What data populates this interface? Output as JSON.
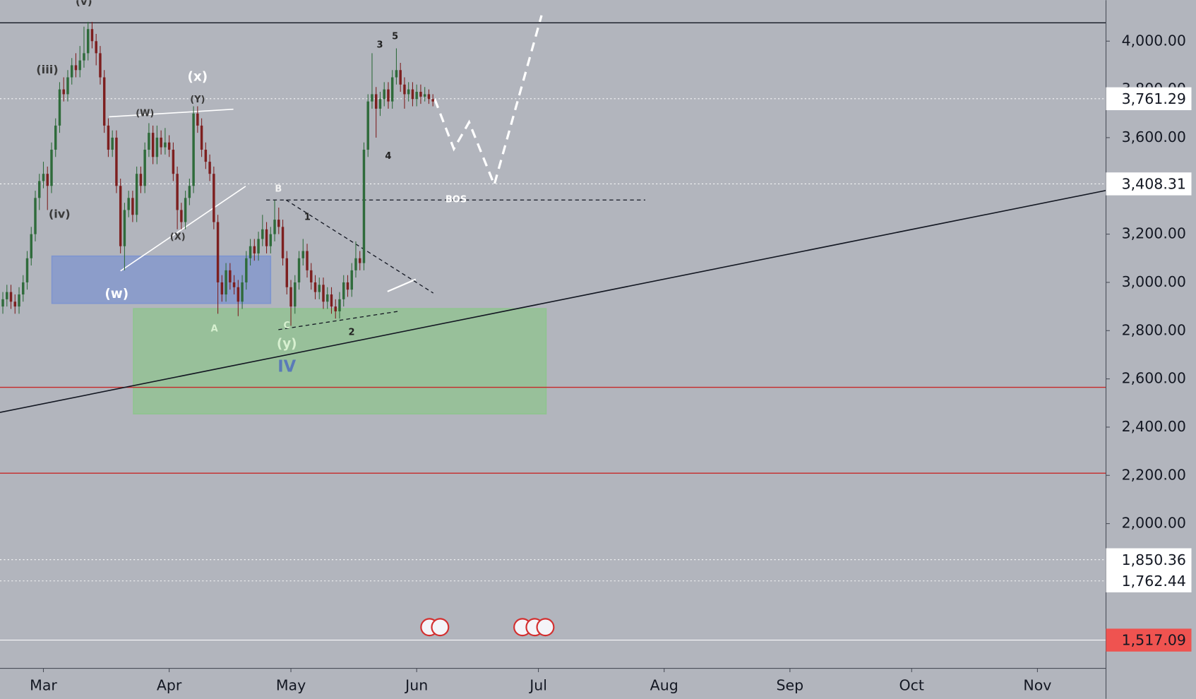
{
  "chart_data": {
    "type": "candlestick",
    "xlim": [
      -10.7,
      261.9
    ],
    "ylim": [
      1400,
      4170
    ],
    "xticks": [
      {
        "value": 0,
        "label": "Mar"
      },
      {
        "value": 31,
        "label": "Apr"
      },
      {
        "value": 61,
        "label": "May"
      },
      {
        "value": 92,
        "label": "Jun"
      },
      {
        "value": 122,
        "label": "Jul"
      },
      {
        "value": 153,
        "label": "Aug"
      },
      {
        "value": 184,
        "label": "Sep"
      },
      {
        "value": 214,
        "label": "Oct"
      },
      {
        "value": 245,
        "label": "Nov"
      }
    ],
    "yticks": [
      {
        "value": 2000,
        "label": "2,000.00"
      },
      {
        "value": 2200,
        "label": "2,200.00"
      },
      {
        "value": 2400,
        "label": "2,400.00"
      },
      {
        "value": 2600,
        "label": "2,600.00"
      },
      {
        "value": 2800,
        "label": "2,800.00"
      },
      {
        "value": 3000,
        "label": "3,000.00"
      },
      {
        "value": 3200,
        "label": "3,200.00"
      },
      {
        "value": 3400,
        "label": "3,400.00"
      },
      {
        "value": 3600,
        "label": "3,600.00"
      },
      {
        "value": 3800,
        "label": "3,800.00"
      },
      {
        "value": 4000,
        "label": "4,000.00"
      }
    ],
    "up_color": "#2f6b3b",
    "down_color": "#7d1f1f",
    "candles": {
      "x": [
        -10,
        -9,
        -8,
        -7,
        -6,
        -5,
        -4,
        -3,
        -2,
        -1,
        0,
        1,
        2,
        3,
        4,
        5,
        6,
        7,
        8,
        9,
        10,
        11,
        12,
        13,
        14,
        15,
        16,
        17,
        18,
        19,
        20,
        21,
        22,
        23,
        24,
        25,
        26,
        27,
        28,
        29,
        30,
        31,
        32,
        33,
        34,
        35,
        36,
        37,
        38,
        39,
        40,
        41,
        42,
        43,
        44,
        45,
        46,
        47,
        48,
        49,
        50,
        51,
        52,
        53,
        54,
        55,
        56,
        57,
        58,
        59,
        60,
        61,
        62,
        63,
        64,
        65,
        66,
        67,
        68,
        69,
        70,
        71,
        72,
        73,
        74,
        75,
        76,
        77,
        78,
        79,
        80,
        81,
        82,
        83,
        84,
        85,
        86,
        87,
        88,
        89,
        90,
        91,
        92,
        93,
        94,
        95,
        96
      ],
      "ohlc": [
        [
          2900,
          2960,
          2870,
          2930
        ],
        [
          2930,
          2990,
          2900,
          2960
        ],
        [
          2960,
          2990,
          2890,
          2920
        ],
        [
          2920,
          2950,
          2870,
          2900
        ],
        [
          2900,
          2980,
          2870,
          2950
        ],
        [
          2950,
          3030,
          2920,
          3000
        ],
        [
          3000,
          3130,
          2970,
          3100
        ],
        [
          3100,
          3230,
          3070,
          3200
        ],
        [
          3200,
          3380,
          3170,
          3350
        ],
        [
          3350,
          3450,
          3300,
          3420
        ],
        [
          3420,
          3500,
          3390,
          3450
        ],
        [
          3450,
          3480,
          3300,
          3400
        ],
        [
          3400,
          3580,
          3370,
          3550
        ],
        [
          3550,
          3680,
          3520,
          3650
        ],
        [
          3650,
          3830,
          3620,
          3800
        ],
        [
          3800,
          3850,
          3750,
          3780
        ],
        [
          3780,
          3880,
          3750,
          3850
        ],
        [
          3850,
          3930,
          3820,
          3900
        ],
        [
          3900,
          3950,
          3850,
          3880
        ],
        [
          3880,
          3980,
          3850,
          3920
        ],
        [
          3920,
          4060,
          3890,
          3950
        ],
        [
          3950,
          4080,
          3920,
          4050
        ],
        [
          4050,
          4080,
          3970,
          4000
        ],
        [
          4000,
          4030,
          3900,
          3950
        ],
        [
          3950,
          3980,
          3820,
          3850
        ],
        [
          3850,
          3880,
          3620,
          3650
        ],
        [
          3650,
          3680,
          3520,
          3550
        ],
        [
          3550,
          3630,
          3520,
          3600
        ],
        [
          3600,
          3630,
          3370,
          3400
        ],
        [
          3400,
          3430,
          3120,
          3150
        ],
        [
          3150,
          3330,
          3050,
          3300
        ],
        [
          3300,
          3380,
          3270,
          3350
        ],
        [
          3350,
          3380,
          3250,
          3280
        ],
        [
          3280,
          3480,
          3250,
          3450
        ],
        [
          3450,
          3480,
          3370,
          3400
        ],
        [
          3400,
          3580,
          3370,
          3550
        ],
        [
          3550,
          3660,
          3520,
          3620
        ],
        [
          3620,
          3650,
          3490,
          3520
        ],
        [
          3520,
          3650,
          3490,
          3600
        ],
        [
          3600,
          3630,
          3530,
          3560
        ],
        [
          3560,
          3640,
          3530,
          3580
        ],
        [
          3580,
          3610,
          3520,
          3550
        ],
        [
          3550,
          3580,
          3420,
          3450
        ],
        [
          3450,
          3480,
          3220,
          3300
        ],
        [
          3300,
          3330,
          3220,
          3250
        ],
        [
          3250,
          3380,
          3220,
          3350
        ],
        [
          3350,
          3430,
          3320,
          3400
        ],
        [
          3400,
          3730,
          3370,
          3700
        ],
        [
          3700,
          3730,
          3620,
          3650
        ],
        [
          3650,
          3680,
          3520,
          3550
        ],
        [
          3550,
          3580,
          3470,
          3500
        ],
        [
          3500,
          3530,
          3420,
          3450
        ],
        [
          3450,
          3480,
          3220,
          3250
        ],
        [
          3250,
          3280,
          2870,
          3000
        ],
        [
          3000,
          3030,
          2920,
          2950
        ],
        [
          2950,
          3080,
          2920,
          3050
        ],
        [
          3050,
          3080,
          2970,
          3000
        ],
        [
          3000,
          3030,
          2950,
          2980
        ],
        [
          2980,
          3010,
          2860,
          2920
        ],
        [
          2920,
          3030,
          2890,
          3000
        ],
        [
          3000,
          3130,
          2970,
          3100
        ],
        [
          3100,
          3180,
          3070,
          3150
        ],
        [
          3150,
          3180,
          3090,
          3120
        ],
        [
          3120,
          3210,
          3090,
          3180
        ],
        [
          3180,
          3280,
          3150,
          3220
        ],
        [
          3220,
          3250,
          3120,
          3150
        ],
        [
          3150,
          3230,
          3120,
          3200
        ],
        [
          3200,
          3340,
          3170,
          3260
        ],
        [
          3260,
          3310,
          3200,
          3230
        ],
        [
          3230,
          3260,
          3070,
          3100
        ],
        [
          3100,
          3130,
          2950,
          2980
        ],
        [
          2980,
          3010,
          2820,
          2900
        ],
        [
          2900,
          3030,
          2870,
          3000
        ],
        [
          3000,
          3130,
          2970,
          3100
        ],
        [
          3100,
          3180,
          3070,
          3130
        ],
        [
          3130,
          3160,
          3020,
          3050
        ],
        [
          3050,
          3080,
          2970,
          3000
        ],
        [
          3000,
          3030,
          2930,
          2960
        ],
        [
          2960,
          3020,
          2930,
          2990
        ],
        [
          2990,
          3020,
          2890,
          2920
        ],
        [
          2920,
          2980,
          2890,
          2950
        ],
        [
          2950,
          2980,
          2870,
          2900
        ],
        [
          2900,
          2930,
          2850,
          2880
        ],
        [
          2880,
          2960,
          2850,
          2930
        ],
        [
          2930,
          3030,
          2900,
          3000
        ],
        [
          3000,
          3030,
          2940,
          2970
        ],
        [
          2970,
          3080,
          2940,
          3050
        ],
        [
          3050,
          3170,
          3020,
          3100
        ],
        [
          3100,
          3130,
          3050,
          3080
        ],
        [
          3080,
          3580,
          3050,
          3550
        ],
        [
          3550,
          3780,
          3520,
          3750
        ],
        [
          3750,
          3950,
          3720,
          3780
        ],
        [
          3780,
          3810,
          3600,
          3720
        ],
        [
          3720,
          3790,
          3690,
          3760
        ],
        [
          3760,
          3830,
          3730,
          3800
        ],
        [
          3800,
          3830,
          3720,
          3750
        ],
        [
          3750,
          3880,
          3720,
          3850
        ],
        [
          3850,
          3970,
          3820,
          3880
        ],
        [
          3880,
          3910,
          3790,
          3820
        ],
        [
          3820,
          3850,
          3720,
          3780
        ],
        [
          3780,
          3830,
          3750,
          3800
        ],
        [
          3800,
          3830,
          3730,
          3760
        ],
        [
          3760,
          3820,
          3730,
          3790
        ],
        [
          3790,
          3820,
          3740,
          3770
        ],
        [
          3770,
          3810,
          3750,
          3780
        ],
        [
          3780,
          3800,
          3740,
          3760
        ],
        [
          3760,
          3780,
          3730,
          3750
        ]
      ]
    },
    "levels": [
      {
        "value": 3761.29,
        "label": "3,761.29",
        "color": "#ffffff"
      },
      {
        "value": 3408.31,
        "label": "3,408.31",
        "color": "#ffffff"
      },
      {
        "value": 1850.36,
        "label": "1,850.36",
        "color": "#ffffff"
      },
      {
        "value": 1762.44,
        "label": "1,762.44",
        "color": "#ffffff"
      },
      {
        "value": 1517.09,
        "label": "1,517.09",
        "color": "#ef5350"
      }
    ],
    "hlines": [
      {
        "value": 4076,
        "color": "#131722"
      },
      {
        "value": 2565,
        "color": "#c62828"
      },
      {
        "value": 2209,
        "color": "#c62828"
      }
    ],
    "zones": [
      {
        "x": [
          2.1,
          56.0
        ],
        "y": [
          2913,
          3109
        ],
        "color": "#7f95cf"
      },
      {
        "x": [
          22.2,
          123.9
        ],
        "y": [
          2455,
          2891
        ],
        "color": "#8fc48f"
      }
    ],
    "trendline": {
      "x": [
        -10.7,
        261.9
      ],
      "y": [
        2461,
        3381
      ],
      "color": "#131722"
    },
    "annotations": [
      {
        "text": "(v)",
        "color": "#3a3a3a"
      },
      {
        "text": "(iii)",
        "color": "#3a3a3a"
      },
      {
        "text": "(iv)",
        "color": "#3a3a3a"
      },
      {
        "text": "(x)",
        "color": "#ffffff"
      },
      {
        "text": "(W)",
        "color": "#3a3a3a"
      },
      {
        "text": "(Y)",
        "color": "#3a3a3a"
      },
      {
        "text": "(X)",
        "color": "#3a3a3a"
      },
      {
        "text": "(w)",
        "color": "#ffffff"
      },
      {
        "text": "A",
        "color": "#d7f0d0"
      },
      {
        "text": "B",
        "color": "#f2f2f2"
      },
      {
        "text": "C",
        "color": "#d7f0d0"
      },
      {
        "text": "(y)",
        "color": "#d7f0d0"
      },
      {
        "text": "IV",
        "color": "#5a7ab8"
      },
      {
        "text": "1",
        "color": "#222222"
      },
      {
        "text": "2",
        "color": "#222222"
      },
      {
        "text": "3",
        "color": "#222222"
      },
      {
        "text": "4",
        "color": "#222222"
      },
      {
        "text": "5",
        "color": "#222222"
      },
      {
        "text": "BOS",
        "color": "#ffffff"
      }
    ]
  }
}
